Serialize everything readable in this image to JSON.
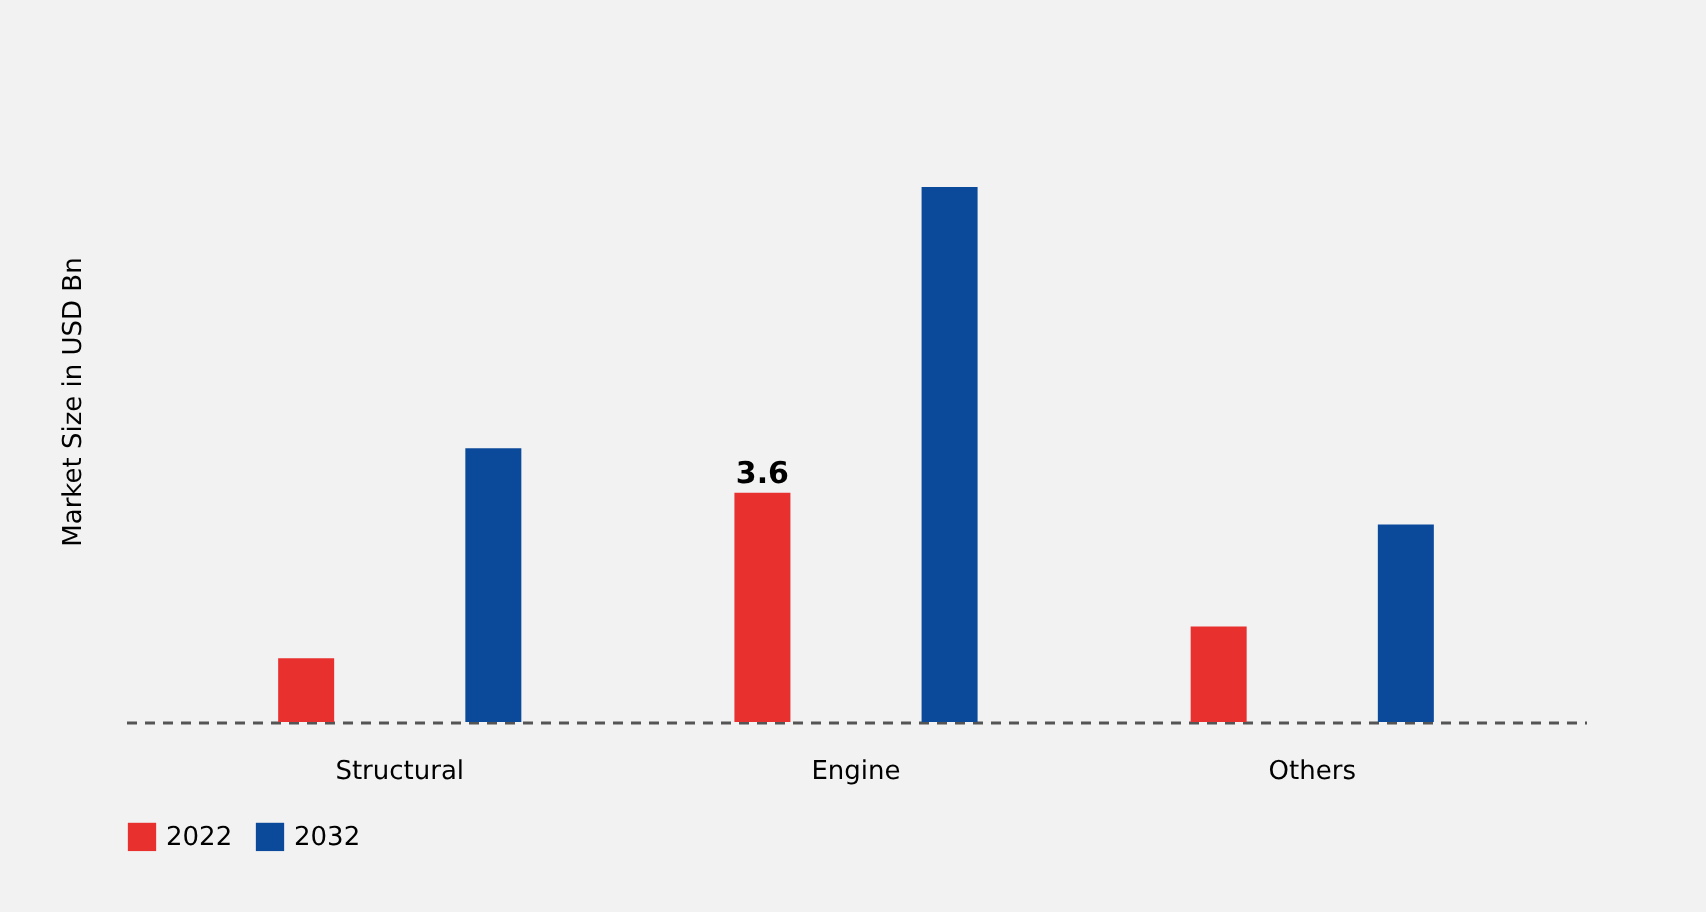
{
  "chart_data": {
    "type": "bar",
    "tick_labels": "x",
    "ylabel": "Market Size in USD Bn",
    "categories": [
      "Structural",
      "Engine",
      "Others"
    ],
    "series": [
      {
        "name": "2022",
        "color": "#e8302f",
        "values": [
          1.0,
          3.6,
          1.5
        ],
        "value_labels": [
          null,
          "3.6",
          null
        ]
      },
      {
        "name": "2032",
        "color": "#0b4a9b",
        "values": [
          4.3,
          8.4,
          3.1
        ]
      }
    ],
    "legend": "bottom",
    "grid": false
  }
}
